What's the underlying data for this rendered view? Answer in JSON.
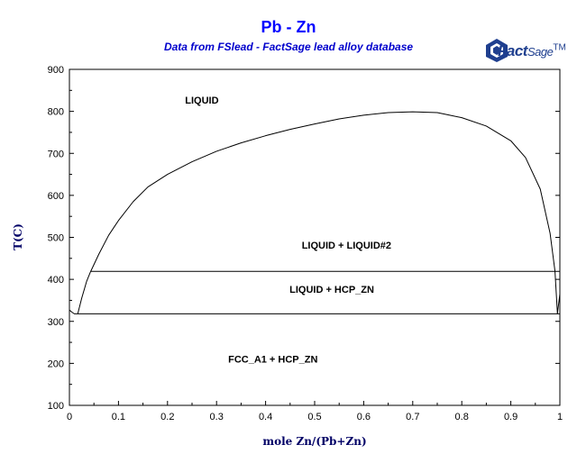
{
  "title": "Pb - Zn",
  "subtitle": "Data from FSlead - FactSage lead alloy database",
  "logo": {
    "brand": "Fact",
    "brand2": "Sage",
    "mark": "TM"
  },
  "chart_data": {
    "type": "line",
    "xlabel": "mole Zn/(Pb+Zn)",
    "ylabel": "T(C)",
    "xlim": [
      0,
      1
    ],
    "ylim": [
      100,
      900
    ],
    "xticks": [
      0,
      0.1,
      0.2,
      0.3,
      0.4,
      0.5,
      0.6,
      0.7,
      0.8,
      0.9,
      1
    ],
    "xtick_labels": [
      "0",
      "0.1",
      "0.2",
      "0.3",
      "0.4",
      "0.5",
      "0.6",
      "0.7",
      "0.8",
      "0.9",
      "1"
    ],
    "yticks": [
      100,
      200,
      300,
      400,
      500,
      600,
      700,
      800,
      900
    ],
    "ytick_labels": [
      "100",
      "200",
      "300",
      "400",
      "500",
      "600",
      "700",
      "800",
      "900"
    ],
    "grid": false,
    "series": [
      {
        "id": "miscibility-gap",
        "x": [
          0.043,
          0.06,
          0.08,
          0.1,
          0.13,
          0.16,
          0.2,
          0.25,
          0.3,
          0.35,
          0.4,
          0.45,
          0.5,
          0.55,
          0.6,
          0.65,
          0.7,
          0.75,
          0.8,
          0.85,
          0.9,
          0.93,
          0.96,
          0.98,
          0.99,
          0.995
        ],
        "y": [
          418,
          460,
          505,
          540,
          585,
          620,
          650,
          680,
          705,
          725,
          742,
          757,
          770,
          782,
          791,
          797,
          799,
          797,
          785,
          765,
          730,
          690,
          615,
          510,
          420,
          319
        ]
      },
      {
        "id": "lead-liquidus",
        "x": [
          0.0,
          0.005,
          0.01,
          0.017,
          0.025,
          0.035,
          0.043
        ],
        "y": [
          327,
          322,
          318,
          318,
          355,
          395,
          418
        ]
      },
      {
        "id": "zinc-liquidus-edge",
        "x": [
          0.995,
          1.0,
          1.0
        ],
        "y": [
          319,
          365,
          419
        ]
      },
      {
        "id": "lead-solidus-edge",
        "x": [
          0.0,
          0.0
        ],
        "y": [
          318,
          248
        ]
      },
      {
        "id": "monotectic",
        "x": [
          0.043,
          1.0
        ],
        "y": [
          419,
          419
        ]
      },
      {
        "id": "eutectic",
        "x": [
          0.017,
          1.0
        ],
        "y": [
          318,
          318
        ]
      }
    ],
    "annotations": [
      {
        "text": "LIQUID",
        "x": 0.27,
        "y": 818
      },
      {
        "text": "LIQUID + LIQUID#2",
        "x": 0.565,
        "y": 473
      },
      {
        "text": "LIQUID + HCP_ZN",
        "x": 0.535,
        "y": 368
      },
      {
        "text": "FCC_A1 + HCP_ZN",
        "x": 0.415,
        "y": 202
      }
    ]
  }
}
